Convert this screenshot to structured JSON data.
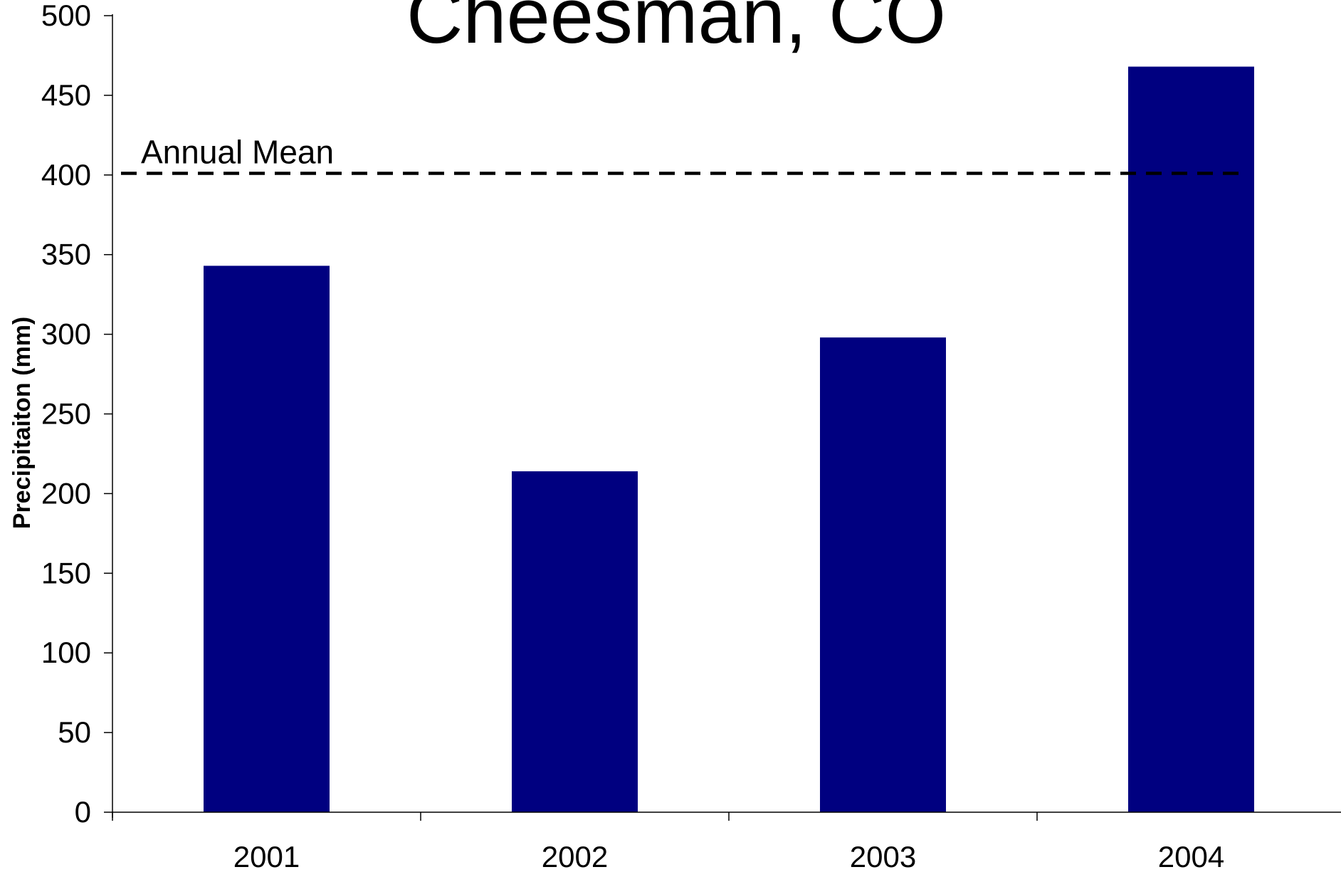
{
  "colors": {
    "bar": "#000080",
    "axis": "#000000",
    "mean_line": "#000000"
  },
  "chart_data": {
    "type": "bar",
    "title": "Cheesman, CO",
    "xlabel": "",
    "ylabel": "Precipitaiton (mm)",
    "categories": [
      "2001",
      "2002",
      "2003",
      "2004"
    ],
    "values": [
      343,
      214,
      298,
      468
    ],
    "ylim": [
      0,
      500
    ],
    "yticks": [
      0,
      50,
      100,
      150,
      200,
      250,
      300,
      350,
      400,
      450,
      500
    ],
    "grid": false,
    "legend": "none",
    "reference_line": {
      "label": "Annual Mean",
      "value": 401,
      "style": "dashed"
    }
  }
}
